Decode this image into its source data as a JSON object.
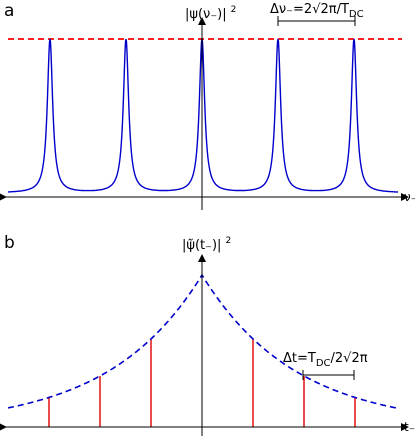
{
  "panels": {
    "a": {
      "label": "a",
      "ylabel": "|ψ(ν₋)|",
      "ylabel_exp": "2",
      "xlabel": "ν₋",
      "spacing_prefix": "Δν₋=2",
      "spacing_sqrt": "√2",
      "spacing_mid": "π/T",
      "spacing_sub": "DC",
      "peak_positions": [
        -2,
        -1,
        0,
        1,
        2
      ],
      "peak_color": "#0000cc",
      "envelope_color": "#ff0000"
    },
    "b": {
      "label": "b",
      "ylabel": "|ψ̃(t₋)|",
      "ylabel_exp": "2",
      "xlabel": "t₋",
      "spacing_prefix": "Δt=T",
      "spacing_sub": "DC",
      "spacing_mid": "/2",
      "spacing_sqrt": "√2",
      "spacing_suffix": "π",
      "sample_positions": [
        -3,
        -2,
        -1,
        1,
        2,
        3
      ],
      "envelope_color": "#0000cc",
      "sample_color": "#e00000"
    }
  }
}
